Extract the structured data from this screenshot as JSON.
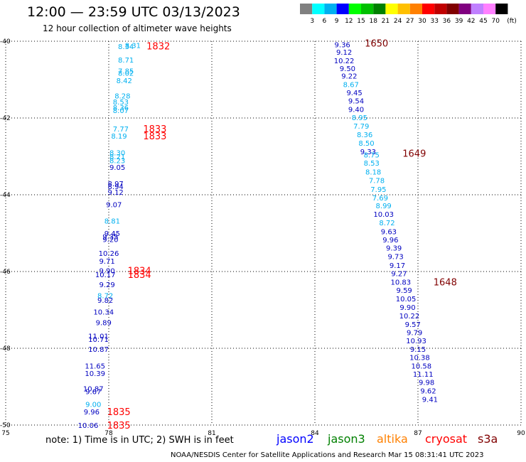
{
  "header": {
    "title": "12:00 — 23:59 UTC 03/13/2023",
    "subtitle": "12 hour collection of altimeter wave heights"
  },
  "colorbar": {
    "labels": [
      "3",
      "6",
      "9",
      "12",
      "15",
      "18",
      "21",
      "24",
      "27",
      "30",
      "33",
      "36",
      "39",
      "42",
      "45",
      "70"
    ],
    "unit": "(ft)",
    "colors": [
      "#808080",
      "#00ffff",
      "#00b0f0",
      "#0000ff",
      "#00ff00",
      "#00c000",
      "#008000",
      "#ffff00",
      "#ffc000",
      "#ff8000",
      "#ff0000",
      "#c00000",
      "#800000",
      "#800080",
      "#c080ff",
      "#ff80ff",
      "#000000"
    ]
  },
  "map": {
    "x_ticks": [
      75,
      78,
      81,
      84,
      87,
      90
    ],
    "y_ticks": [
      -40,
      -42,
      -44,
      -46,
      -48,
      -50
    ],
    "x_labels": [
      "75",
      "78",
      "81",
      "84",
      "87",
      "90"
    ],
    "y_labels": [
      "-40",
      "-42",
      "-44",
      "-46",
      "-48",
      "-50"
    ],
    "tracks": [
      {
        "name": "west",
        "points": [
          {
            "lat": -40.13,
            "lon": 78.5,
            "text": "8.34",
            "c": "#00b0f0"
          },
          {
            "lat": -40.1,
            "lon": 78.7,
            "text": "8.31",
            "c": "#00b0f0"
          },
          {
            "lat": -40.48,
            "lon": 78.5,
            "text": "8.71",
            "c": "#00b0f0"
          },
          {
            "lat": -40.77,
            "lon": 78.5,
            "text": "7.85",
            "c": "#00b0f0"
          },
          {
            "lat": -40.82,
            "lon": 78.5,
            "text": "8.02",
            "c": "#00b0f0"
          },
          {
            "lat": -41.02,
            "lon": 78.45,
            "text": "8.42",
            "c": "#00b0f0"
          },
          {
            "lat": -41.42,
            "lon": 78.4,
            "text": "8.28",
            "c": "#00b0f0"
          },
          {
            "lat": -41.57,
            "lon": 78.35,
            "text": "8.53",
            "c": "#00b0f0"
          },
          {
            "lat": -41.72,
            "lon": 78.35,
            "text": "8.36",
            "c": "#00b0f0"
          },
          {
            "lat": -41.8,
            "lon": 78.35,
            "text": "8.07",
            "c": "#00b0f0"
          },
          {
            "lat": -42.28,
            "lon": 78.35,
            "text": "7.77",
            "c": "#00b0f0"
          },
          {
            "lat": -42.46,
            "lon": 78.3,
            "text": "8.19",
            "c": "#00b0f0"
          },
          {
            "lat": -42.9,
            "lon": 78.25,
            "text": "8.30",
            "c": "#00b0f0"
          },
          {
            "lat": -43.0,
            "lon": 78.25,
            "text": "8.21",
            "c": "#00b0f0"
          },
          {
            "lat": -43.1,
            "lon": 78.25,
            "text": "8.23",
            "c": "#00b0f0"
          },
          {
            "lat": -43.28,
            "lon": 78.25,
            "text": "9.05",
            "c": "#0000c0"
          },
          {
            "lat": -43.7,
            "lon": 78.2,
            "text": "8.97",
            "c": "#0000c0"
          },
          {
            "lat": -43.78,
            "lon": 78.2,
            "text": "8.94",
            "c": "#0000c0"
          },
          {
            "lat": -43.93,
            "lon": 78.2,
            "text": "9.12",
            "c": "#0000c0"
          },
          {
            "lat": -44.25,
            "lon": 78.15,
            "text": "9.07",
            "c": "#0000c0"
          },
          {
            "lat": -44.68,
            "lon": 78.1,
            "text": "8.81",
            "c": "#00b0f0"
          },
          {
            "lat": -45.0,
            "lon": 78.1,
            "text": "9.45",
            "c": "#0000c0"
          },
          {
            "lat": -45.08,
            "lon": 78.05,
            "text": "9.35",
            "c": "#0000c0"
          },
          {
            "lat": -45.16,
            "lon": 78.05,
            "text": "9.20",
            "c": "#0000c0"
          },
          {
            "lat": -45.52,
            "lon": 78.0,
            "text": "10.26",
            "c": "#0000c0"
          },
          {
            "lat": -45.72,
            "lon": 77.95,
            "text": "9.71",
            "c": "#0000c0"
          },
          {
            "lat": -45.97,
            "lon": 77.95,
            "text": "9.90",
            "c": "#0000c0"
          },
          {
            "lat": -46.07,
            "lon": 77.9,
            "text": "10.17",
            "c": "#0000c0"
          },
          {
            "lat": -46.33,
            "lon": 77.95,
            "text": "9.29",
            "c": "#0000c0"
          },
          {
            "lat": -46.62,
            "lon": 77.9,
            "text": "8.72",
            "c": "#00b0f0"
          },
          {
            "lat": -46.74,
            "lon": 77.9,
            "text": "9.82",
            "c": "#0000c0"
          },
          {
            "lat": -47.05,
            "lon": 77.85,
            "text": "10.34",
            "c": "#0000c0"
          },
          {
            "lat": -47.32,
            "lon": 77.85,
            "text": "9.89",
            "c": "#0000c0"
          },
          {
            "lat": -47.68,
            "lon": 77.7,
            "text": "11.01",
            "c": "#0000c0"
          },
          {
            "lat": -47.76,
            "lon": 77.7,
            "text": "10.71",
            "c": "#0000c0"
          },
          {
            "lat": -48.02,
            "lon": 77.7,
            "text": "10.87",
            "c": "#0000c0"
          },
          {
            "lat": -48.45,
            "lon": 77.6,
            "text": "11.65",
            "c": "#0000c0"
          },
          {
            "lat": -48.65,
            "lon": 77.6,
            "text": "10.39",
            "c": "#0000c0"
          },
          {
            "lat": -49.05,
            "lon": 77.55,
            "text": "10.87",
            "c": "#0000c0"
          },
          {
            "lat": -49.12,
            "lon": 77.55,
            "text": "9.67",
            "c": "#0000c0"
          },
          {
            "lat": -49.45,
            "lon": 77.55,
            "text": "9.00",
            "c": "#00b0f0"
          },
          {
            "lat": -49.65,
            "lon": 77.5,
            "text": "9.96",
            "c": "#0000c0"
          },
          {
            "lat": -50.0,
            "lon": 77.4,
            "text": "10.06",
            "c": "#0000c0"
          }
        ]
      },
      {
        "name": "east",
        "points": [
          {
            "lat": -40.08,
            "lon": 84.8,
            "text": "9.36",
            "c": "#0000c0"
          },
          {
            "lat": -40.28,
            "lon": 84.85,
            "text": "9.12",
            "c": "#0000c0"
          },
          {
            "lat": -40.5,
            "lon": 84.85,
            "text": "10.22",
            "c": "#0000c0"
          },
          {
            "lat": -40.7,
            "lon": 84.95,
            "text": "9.50",
            "c": "#0000c0"
          },
          {
            "lat": -40.9,
            "lon": 85.0,
            "text": "9.22",
            "c": "#0000c0"
          },
          {
            "lat": -41.12,
            "lon": 85.05,
            "text": "8.67",
            "c": "#00b0f0"
          },
          {
            "lat": -41.33,
            "lon": 85.15,
            "text": "9.45",
            "c": "#0000c0"
          },
          {
            "lat": -41.55,
            "lon": 85.2,
            "text": "9.54",
            "c": "#0000c0"
          },
          {
            "lat": -41.77,
            "lon": 85.2,
            "text": "9.40",
            "c": "#0000c0"
          },
          {
            "lat": -41.98,
            "lon": 85.3,
            "text": "8.95",
            "c": "#00b0f0"
          },
          {
            "lat": -42.2,
            "lon": 85.35,
            "text": "7.79",
            "c": "#00b0f0"
          },
          {
            "lat": -42.43,
            "lon": 85.45,
            "text": "8.36",
            "c": "#00b0f0"
          },
          {
            "lat": -42.65,
            "lon": 85.5,
            "text": "8.50",
            "c": "#00b0f0"
          },
          {
            "lat": -42.87,
            "lon": 85.55,
            "text": "9.33",
            "c": "#0000c0"
          },
          {
            "lat": -42.95,
            "lon": 85.65,
            "text": "8.75",
            "c": "#00b0f0"
          },
          {
            "lat": -43.17,
            "lon": 85.65,
            "text": "8.53",
            "c": "#00b0f0"
          },
          {
            "lat": -43.4,
            "lon": 85.7,
            "text": "8.18",
            "c": "#00b0f0"
          },
          {
            "lat": -43.62,
            "lon": 85.8,
            "text": "7.78",
            "c": "#00b0f0"
          },
          {
            "lat": -43.85,
            "lon": 85.85,
            "text": "7.95",
            "c": "#00b0f0"
          },
          {
            "lat": -44.07,
            "lon": 85.9,
            "text": "7.69",
            "c": "#00b0f0"
          },
          {
            "lat": -44.28,
            "lon": 86.0,
            "text": "8.99",
            "c": "#00b0f0"
          },
          {
            "lat": -44.5,
            "lon": 86.0,
            "text": "10.03",
            "c": "#0000c0"
          },
          {
            "lat": -44.72,
            "lon": 86.1,
            "text": "8.72",
            "c": "#00b0f0"
          },
          {
            "lat": -44.95,
            "lon": 86.15,
            "text": "9.63",
            "c": "#0000c0"
          },
          {
            "lat": -45.17,
            "lon": 86.2,
            "text": "9.96",
            "c": "#0000c0"
          },
          {
            "lat": -45.38,
            "lon": 86.3,
            "text": "9.39",
            "c": "#0000c0"
          },
          {
            "lat": -45.6,
            "lon": 86.35,
            "text": "9.73",
            "c": "#0000c0"
          },
          {
            "lat": -45.83,
            "lon": 86.4,
            "text": "9.17",
            "c": "#0000c0"
          },
          {
            "lat": -46.05,
            "lon": 86.45,
            "text": "9.27",
            "c": "#0000c0"
          },
          {
            "lat": -46.27,
            "lon": 86.5,
            "text": "10.83",
            "c": "#0000c0"
          },
          {
            "lat": -46.48,
            "lon": 86.6,
            "text": "9.59",
            "c": "#0000c0"
          },
          {
            "lat": -46.7,
            "lon": 86.65,
            "text": "10.05",
            "c": "#0000c0"
          },
          {
            "lat": -46.93,
            "lon": 86.7,
            "text": "9.90",
            "c": "#0000c0"
          },
          {
            "lat": -47.15,
            "lon": 86.75,
            "text": "10.22",
            "c": "#0000c0"
          },
          {
            "lat": -47.37,
            "lon": 86.85,
            "text": "9.57",
            "c": "#0000c0"
          },
          {
            "lat": -47.58,
            "lon": 86.9,
            "text": "9.79",
            "c": "#0000c0"
          },
          {
            "lat": -47.8,
            "lon": 86.95,
            "text": "10.93",
            "c": "#0000c0"
          },
          {
            "lat": -48.02,
            "lon": 87.0,
            "text": "9.15",
            "c": "#0000c0"
          },
          {
            "lat": -48.23,
            "lon": 87.05,
            "text": "10.38",
            "c": "#0000c0"
          },
          {
            "lat": -48.45,
            "lon": 87.1,
            "text": "10.58",
            "c": "#0000c0"
          },
          {
            "lat": -48.67,
            "lon": 87.15,
            "text": "11.11",
            "c": "#0000c0"
          },
          {
            "lat": -48.88,
            "lon": 87.25,
            "text": "9.98",
            "c": "#0000c0"
          },
          {
            "lat": -49.1,
            "lon": 87.3,
            "text": "9.62",
            "c": "#0000c0"
          },
          {
            "lat": -49.32,
            "lon": 87.35,
            "text": "9.41",
            "c": "#0000c0"
          }
        ]
      }
    ],
    "time_labels": [
      {
        "lat": -40.12,
        "lon": 79.1,
        "text": "1832",
        "c": "#ff0000"
      },
      {
        "lat": -42.28,
        "lon": 79.0,
        "text": "1833",
        "c": "#ff0000"
      },
      {
        "lat": -42.46,
        "lon": 79.0,
        "text": "1833",
        "c": "#ff0000"
      },
      {
        "lat": -45.97,
        "lon": 78.55,
        "text": "1834",
        "c": "#ff0000"
      },
      {
        "lat": -46.07,
        "lon": 78.55,
        "text": "1834",
        "c": "#ff0000"
      },
      {
        "lat": -49.65,
        "lon": 77.95,
        "text": "1835",
        "c": "#ff0000"
      },
      {
        "lat": -50.0,
        "lon": 77.95,
        "text": "1835",
        "c": "#ff0000"
      },
      {
        "lat": -40.05,
        "lon": 85.45,
        "text": "1650",
        "c": "#800000"
      },
      {
        "lat": -42.92,
        "lon": 86.55,
        "text": "1649",
        "c": "#800000"
      },
      {
        "lat": -46.27,
        "lon": 87.45,
        "text": "1648",
        "c": "#800000"
      }
    ]
  },
  "note": "note:  1) Time is in UTC; 2) SWH is in feet",
  "satellites": [
    {
      "name": "jason2",
      "color": "#0000ff"
    },
    {
      "name": "jason3",
      "color": "#008000"
    },
    {
      "name": "altika",
      "color": "#ff8000"
    },
    {
      "name": "cryosat",
      "color": "#ff0000"
    },
    {
      "name": "s3a",
      "color": "#800000"
    }
  ],
  "footer": "NOAA/NESDIS Center for Satellite Applications and Research    Mar 15 08:31:41 UTC 2023"
}
